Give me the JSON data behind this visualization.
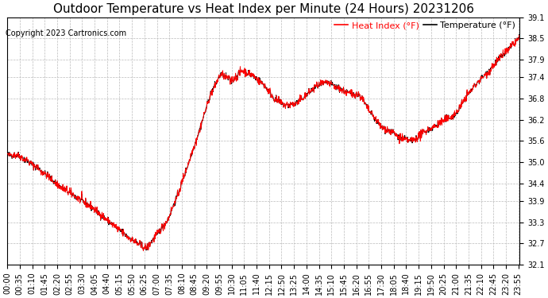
{
  "title": "Outdoor Temperature vs Heat Index per Minute (24 Hours) 20231206",
  "copyright": "Copyright 2023 Cartronics.com",
  "legend_heat": "Heat Index (°F)",
  "legend_temp": "Temperature (°F)",
  "ylabel": "",
  "xlabel": "",
  "ylim": [
    32.1,
    39.1
  ],
  "yticks": [
    32.1,
    32.7,
    33.3,
    33.9,
    34.4,
    35.0,
    35.6,
    36.2,
    36.8,
    37.4,
    37.9,
    38.5,
    39.1
  ],
  "background_color": "#ffffff",
  "grid_color": "#bbbbbb",
  "line_color_heat": "#ff0000",
  "line_color_temp": "#000000",
  "title_fontsize": 11,
  "copyright_fontsize": 7,
  "legend_fontsize": 8,
  "tick_fontsize": 7
}
